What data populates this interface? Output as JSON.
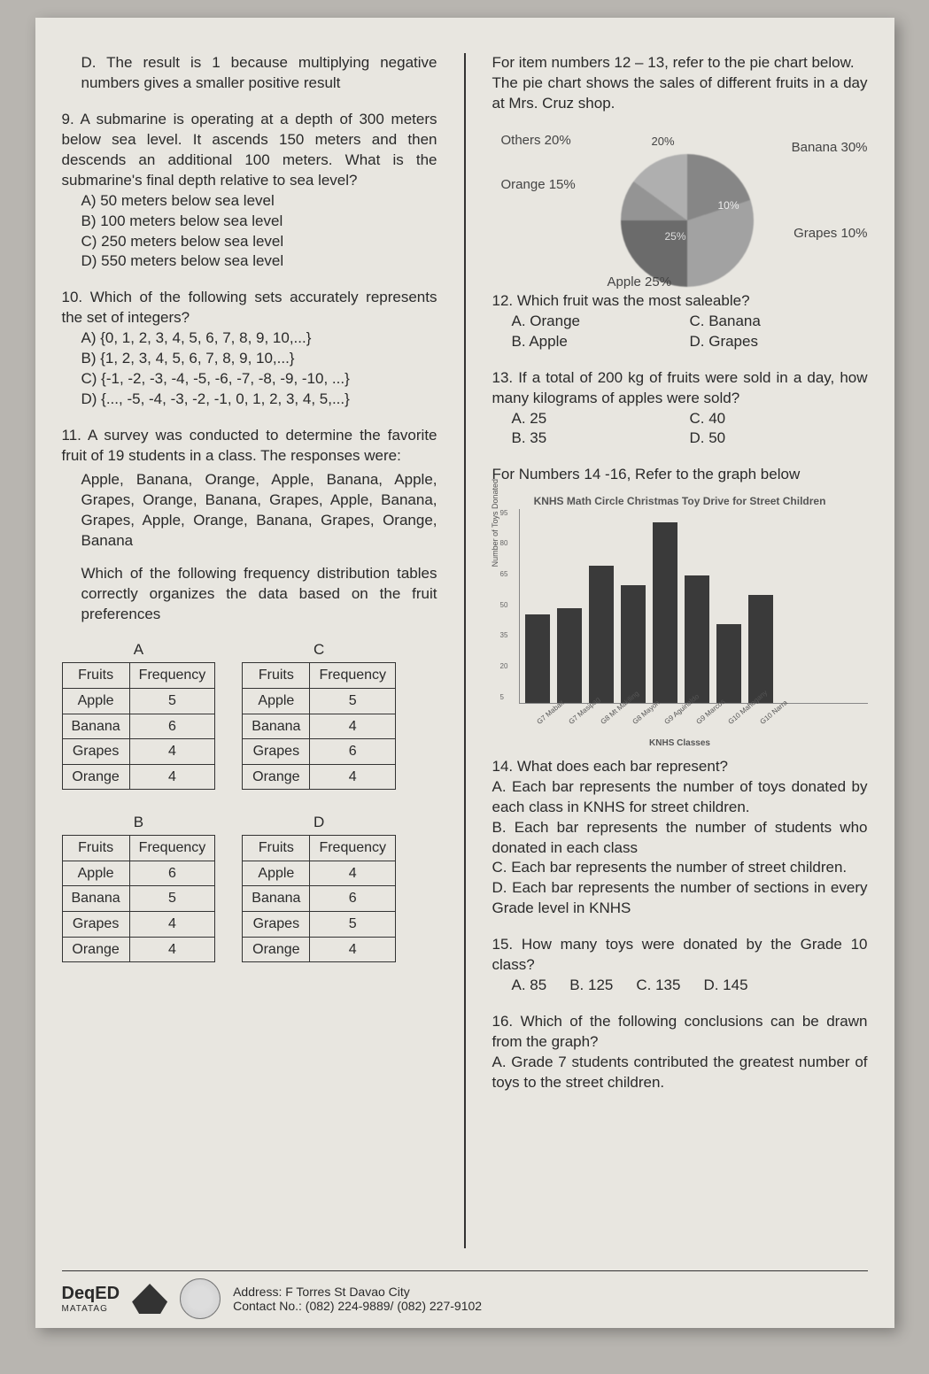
{
  "left": {
    "optD": "D. The result is 1 because multiplying negative numbers gives a smaller positive result",
    "q9": {
      "text": "9. A submarine is operating at a depth of 300 meters below sea level. It ascends 150 meters and then descends an additional 100 meters. What is the submarine's final depth relative to sea level?",
      "a": "A) 50 meters below sea level",
      "b": "B) 100 meters below sea level",
      "c": "C) 250 meters below sea level",
      "d": "D) 550 meters below sea level"
    },
    "q10": {
      "text": "10. Which of the following sets accurately represents the set of integers?",
      "a": "A) {0, 1, 2, 3, 4, 5, 6, 7, 8, 9, 10,...}",
      "b": "B) {1, 2, 3, 4, 5, 6, 7, 8, 9, 10,...}",
      "c": "C) {-1, -2, -3, -4, -5, -6, -7, -8, -9, -10, ...}",
      "d": "D) {..., -5, -4, -3, -2, -1, 0, 1, 2, 3, 4, 5,...}"
    },
    "q11": {
      "text": "11.  A survey was conducted to determine the favorite fruit of 19 students in a class. The responses were:",
      "responses": "Apple, Banana, Orange, Apple, Banana, Apple, Grapes, Orange, Banana, Grapes, Apple, Banana, Grapes, Apple, Orange, Banana, Grapes, Orange, Banana",
      "ask": "Which of the following frequency distribution tables correctly organizes the data based on the fruit preferences"
    },
    "tables": {
      "header1": "Fruits",
      "header2": "Frequency",
      "A": {
        "label": "A",
        "rows": [
          [
            "Apple",
            "5"
          ],
          [
            "Banana",
            "6"
          ],
          [
            "Grapes",
            "4"
          ],
          [
            "Orange",
            "4"
          ]
        ]
      },
      "C": {
        "label": "C",
        "rows": [
          [
            "Apple",
            "5"
          ],
          [
            "Banana",
            "4"
          ],
          [
            "Grapes",
            "6"
          ],
          [
            "Orange",
            "4"
          ]
        ]
      },
      "B": {
        "label": "B",
        "rows": [
          [
            "Apple",
            "6"
          ],
          [
            "Banana",
            "5"
          ],
          [
            "Grapes",
            "4"
          ],
          [
            "Orange",
            "4"
          ]
        ]
      },
      "D": {
        "label": "D",
        "rows": [
          [
            "Apple",
            "4"
          ],
          [
            "Banana",
            "6"
          ],
          [
            "Grapes",
            "5"
          ],
          [
            "Orange",
            "4"
          ]
        ]
      }
    }
  },
  "right": {
    "pieIntro1": "For item numbers 12 – 13, refer to the pie chart below.",
    "pieIntro2": "The pie chart shows the sales of different fruits in a day at Mrs. Cruz shop.",
    "pieLabels": {
      "others": "Others 20%",
      "p20": "20%",
      "banana": "Banana 30%",
      "orange": "Orange 15%",
      "p10": "10%",
      "p25": "25%",
      "grapes": "Grapes 10%",
      "apple": "Apple 25%"
    },
    "q12": {
      "text": "12. Which fruit was the most saleable?",
      "a": "A. Orange",
      "b": "B. Apple",
      "c": "C. Banana",
      "d": "D. Grapes"
    },
    "q13": {
      "text": "13.  If a total of 200 kg of fruits were sold in a day, how many kilograms of apples were sold?",
      "a": "A. 25",
      "b": "B. 35",
      "c": "C. 40",
      "d": "D. 50"
    },
    "graphIntro": "For Numbers 14 -16, Refer to the graph below",
    "chart": {
      "title": "KNHS Math Circle Christmas Toy Drive for Street Children",
      "ylabel": "Number of Toys Donated",
      "xlabel": "KNHS Classes",
      "categories": [
        "G7 Mabait",
        "G7 Masipag",
        "G8 Mt Makiling",
        "G8 Mayon",
        "G9 Aguinaldo",
        "G9 Marcos",
        "G10 Mahogany",
        "G10 Narra"
      ],
      "values": [
        45,
        48,
        70,
        60,
        92,
        65,
        40,
        55
      ],
      "ymax": 95,
      "bar_color": "#3a3a3a"
    },
    "q14": {
      "text": "14. What does each bar represent?",
      "a": "A. Each bar represents the number of toys donated by each class in KNHS for street children.",
      "b": "B. Each bar represents the number of students who donated in each class",
      "c": "C. Each bar represents the number of street children.",
      "d": "D. Each bar represents the number of sections in every Grade level in KNHS"
    },
    "q15": {
      "text": "15. How many toys were donated by the Grade 10 class?",
      "a": "A. 85",
      "b": "B. 125",
      "c": "C. 135",
      "d": "D. 145"
    },
    "q16": {
      "text": "16. Which of the following conclusions can be drawn from the graph?",
      "a": "A. Grade 7 students contributed the greatest number of toys to the street children."
    }
  },
  "footer": {
    "deped": "DepED",
    "matatag": "MATATAG",
    "addr": "Address: F Torres St Davao City",
    "contact": "Contact No.: (082) 224-9889/ (082) 227-9102"
  }
}
